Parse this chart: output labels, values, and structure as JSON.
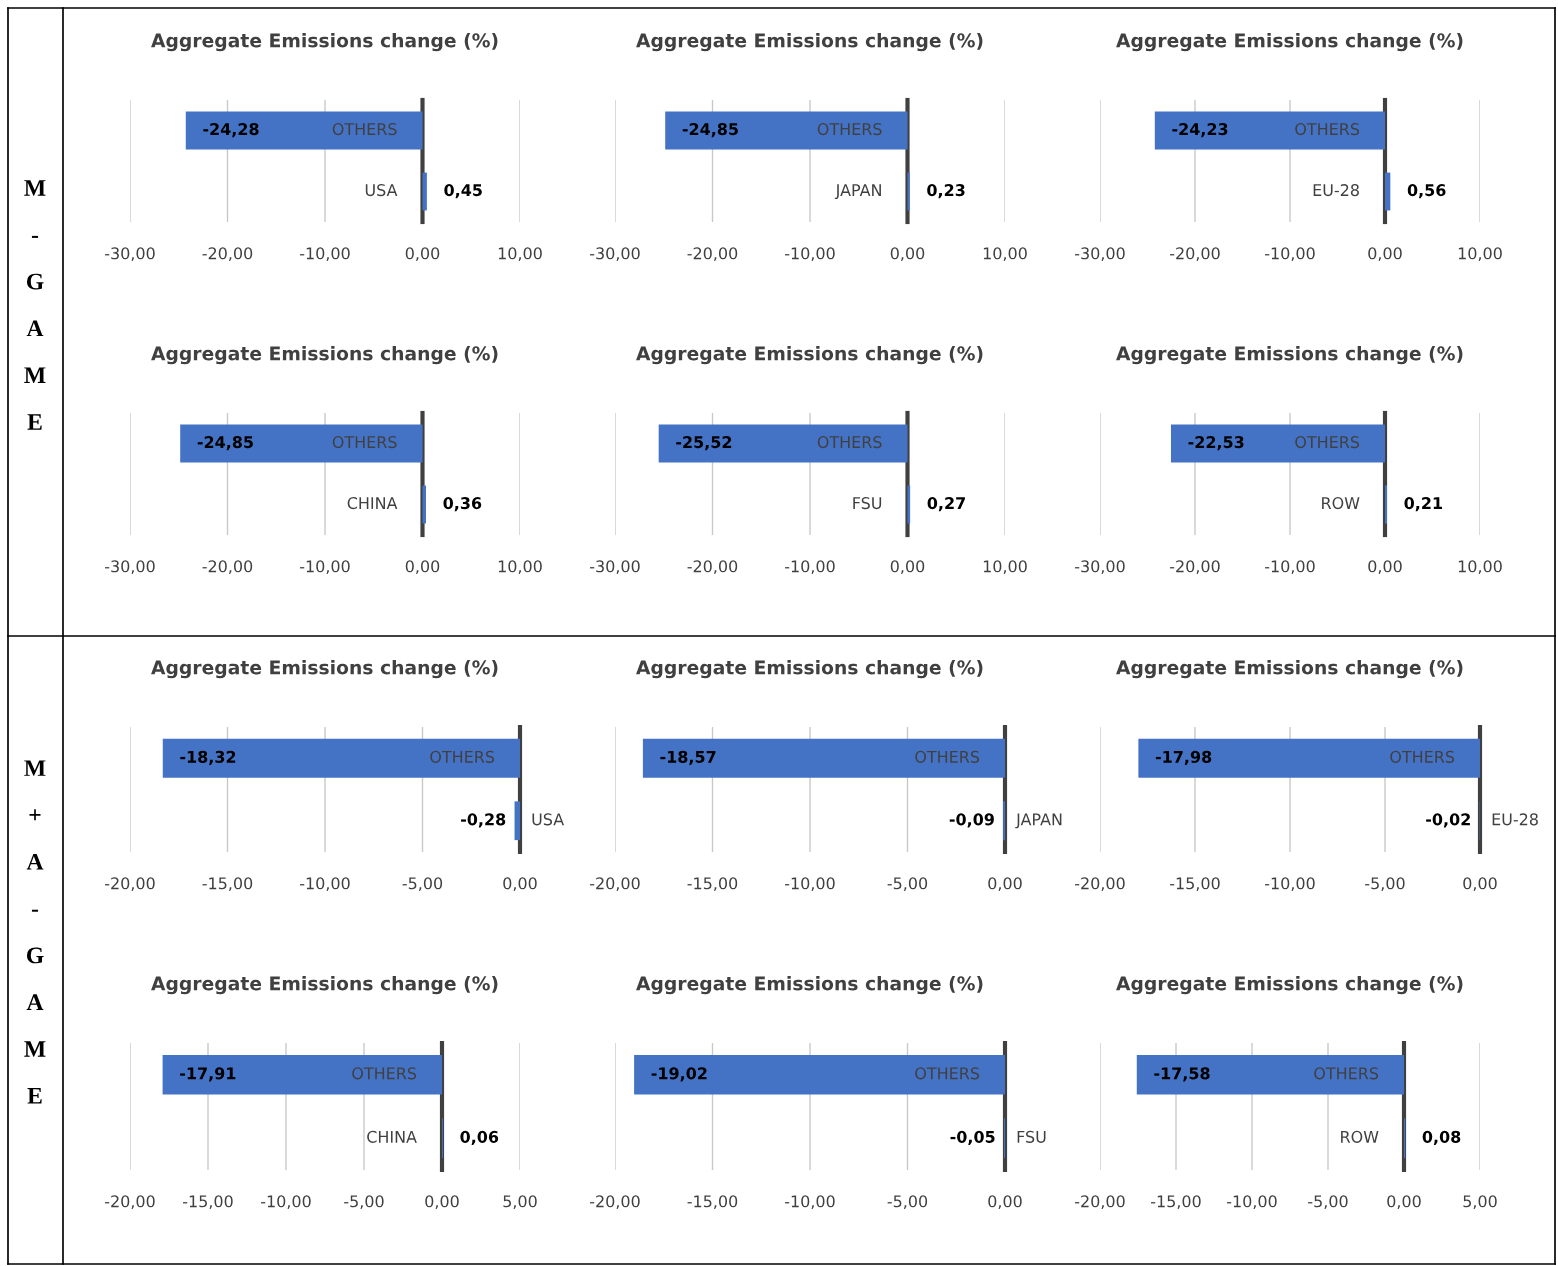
{
  "chart_data": [
    {
      "type": "bar",
      "orientation": "horizontal",
      "title": "Aggregate Emissions change (%)",
      "annotations": [
        "M-GAME"
      ],
      "categories": [
        "OTHERS",
        "USA"
      ],
      "values": [
        -24.28,
        0.45
      ],
      "value_labels": [
        "-24,28",
        "0,45"
      ],
      "color": "#4472c4",
      "xlim": [
        -30,
        10
      ],
      "xticks": [
        {
          "value": -30,
          "label": "-30,00"
        },
        {
          "value": -20,
          "label": "-20,00"
        },
        {
          "value": -10,
          "label": "-10,00"
        },
        {
          "value": 0,
          "label": "0,00"
        },
        {
          "value": 10,
          "label": "10,00"
        }
      ],
      "grid": "x",
      "legend": false
    },
    {
      "type": "bar",
      "orientation": "horizontal",
      "title": "Aggregate Emissions change (%)",
      "categories": [
        "OTHERS",
        "JAPAN"
      ],
      "values": [
        -24.85,
        0.23
      ],
      "value_labels": [
        "-24,85",
        "0,23"
      ],
      "color": "#4472c4",
      "xlim": [
        -30,
        10
      ],
      "xticks": [
        {
          "value": -30,
          "label": "-30,00"
        },
        {
          "value": -20,
          "label": "-20,00"
        },
        {
          "value": -10,
          "label": "-10,00"
        },
        {
          "value": 0,
          "label": "0,00"
        },
        {
          "value": 10,
          "label": "10,00"
        }
      ],
      "grid": "x",
      "legend": false
    },
    {
      "type": "bar",
      "orientation": "horizontal",
      "title": "Aggregate Emissions change (%)",
      "categories": [
        "OTHERS",
        "EU-28"
      ],
      "values": [
        -24.23,
        0.56
      ],
      "value_labels": [
        "-24,23",
        "0,56"
      ],
      "color": "#4472c4",
      "xlim": [
        -30,
        10
      ],
      "xticks": [
        {
          "value": -30,
          "label": "-30,00"
        },
        {
          "value": -20,
          "label": "-20,00"
        },
        {
          "value": -10,
          "label": "-10,00"
        },
        {
          "value": 0,
          "label": "0,00"
        },
        {
          "value": 10,
          "label": "10,00"
        }
      ],
      "grid": "x",
      "legend": false
    },
    {
      "type": "bar",
      "orientation": "horizontal",
      "title": "Aggregate Emissions change (%)",
      "categories": [
        "OTHERS",
        "CHINA"
      ],
      "values": [
        -24.85,
        0.36
      ],
      "value_labels": [
        "-24,85",
        "0,36"
      ],
      "color": "#4472c4",
      "xlim": [
        -30,
        10
      ],
      "xticks": [
        {
          "value": -30,
          "label": "-30,00"
        },
        {
          "value": -20,
          "label": "-20,00"
        },
        {
          "value": -10,
          "label": "-10,00"
        },
        {
          "value": 0,
          "label": "0,00"
        },
        {
          "value": 10,
          "label": "10,00"
        }
      ],
      "grid": "x",
      "legend": false
    },
    {
      "type": "bar",
      "orientation": "horizontal",
      "title": "Aggregate Emissions change (%)",
      "categories": [
        "OTHERS",
        "FSU"
      ],
      "values": [
        -25.52,
        0.27
      ],
      "value_labels": [
        "-25,52",
        "0,27"
      ],
      "color": "#4472c4",
      "xlim": [
        -30,
        10
      ],
      "xticks": [
        {
          "value": -30,
          "label": "-30,00"
        },
        {
          "value": -20,
          "label": "-20,00"
        },
        {
          "value": -10,
          "label": "-10,00"
        },
        {
          "value": 0,
          "label": "0,00"
        },
        {
          "value": 10,
          "label": "10,00"
        }
      ],
      "grid": "x",
      "legend": false
    },
    {
      "type": "bar",
      "orientation": "horizontal",
      "title": "Aggregate Emissions change (%)",
      "categories": [
        "OTHERS",
        "ROW"
      ],
      "values": [
        -22.53,
        0.21
      ],
      "value_labels": [
        "-22,53",
        "0,21"
      ],
      "color": "#4472c4",
      "xlim": [
        -30,
        10
      ],
      "xticks": [
        {
          "value": -30,
          "label": "-30,00"
        },
        {
          "value": -20,
          "label": "-20,00"
        },
        {
          "value": -10,
          "label": "-10,00"
        },
        {
          "value": 0,
          "label": "0,00"
        },
        {
          "value": 10,
          "label": "10,00"
        }
      ],
      "grid": "x",
      "legend": false
    },
    {
      "type": "bar",
      "orientation": "horizontal",
      "title": "Aggregate Emissions change (%)",
      "annotations": [
        "M+A-GAME"
      ],
      "categories": [
        "OTHERS",
        "USA"
      ],
      "values": [
        -18.32,
        -0.28
      ],
      "value_labels": [
        "-18,32",
        "-0,28"
      ],
      "color": "#4472c4",
      "xlim": [
        -20,
        0
      ],
      "xticks": [
        {
          "value": -20,
          "label": "-20,00"
        },
        {
          "value": -15,
          "label": "-15,00"
        },
        {
          "value": -10,
          "label": "-10,00"
        },
        {
          "value": -5,
          "label": "-5,00"
        },
        {
          "value": 0,
          "label": "0,00"
        }
      ],
      "grid": "x",
      "legend": false
    },
    {
      "type": "bar",
      "orientation": "horizontal",
      "title": "Aggregate Emissions change (%)",
      "categories": [
        "OTHERS",
        "JAPAN"
      ],
      "values": [
        -18.57,
        -0.09
      ],
      "value_labels": [
        "-18,57",
        "-0,09"
      ],
      "color": "#4472c4",
      "xlim": [
        -20,
        0
      ],
      "xticks": [
        {
          "value": -20,
          "label": "-20,00"
        },
        {
          "value": -15,
          "label": "-15,00"
        },
        {
          "value": -10,
          "label": "-10,00"
        },
        {
          "value": -5,
          "label": "-5,00"
        },
        {
          "value": 0,
          "label": "0,00"
        }
      ],
      "grid": "x",
      "legend": false
    },
    {
      "type": "bar",
      "orientation": "horizontal",
      "title": "Aggregate Emissions change (%)",
      "categories": [
        "OTHERS",
        "EU-28"
      ],
      "values": [
        -17.98,
        -0.02
      ],
      "value_labels": [
        "-17,98",
        "-0,02"
      ],
      "color": "#4472c4",
      "xlim": [
        -20,
        0
      ],
      "xticks": [
        {
          "value": -20,
          "label": "-20,00"
        },
        {
          "value": -15,
          "label": "-15,00"
        },
        {
          "value": -10,
          "label": "-10,00"
        },
        {
          "value": -5,
          "label": "-5,00"
        },
        {
          "value": 0,
          "label": "0,00"
        }
      ],
      "grid": "x",
      "legend": false
    },
    {
      "type": "bar",
      "orientation": "horizontal",
      "title": "Aggregate Emissions change (%)",
      "categories": [
        "OTHERS",
        "CHINA"
      ],
      "values": [
        -17.91,
        0.06
      ],
      "value_labels": [
        "-17,91",
        "0,06"
      ],
      "color": "#4472c4",
      "xlim": [
        -20,
        5
      ],
      "xticks": [
        {
          "value": -20,
          "label": "-20,00"
        },
        {
          "value": -15,
          "label": "-15,00"
        },
        {
          "value": -10,
          "label": "-10,00"
        },
        {
          "value": -5,
          "label": "-5,00"
        },
        {
          "value": 0,
          "label": "0,00"
        },
        {
          "value": 5,
          "label": "5,00"
        }
      ],
      "grid": "x",
      "legend": false
    },
    {
      "type": "bar",
      "orientation": "horizontal",
      "title": "Aggregate Emissions change (%)",
      "categories": [
        "OTHERS",
        "FSU"
      ],
      "values": [
        -19.02,
        -0.05
      ],
      "value_labels": [
        "-19,02",
        "-0,05"
      ],
      "color": "#4472c4",
      "xlim": [
        -20,
        0
      ],
      "xticks": [
        {
          "value": -20,
          "label": "-20,00"
        },
        {
          "value": -15,
          "label": "-15,00"
        },
        {
          "value": -10,
          "label": "-10,00"
        },
        {
          "value": -5,
          "label": "-5,00"
        },
        {
          "value": 0,
          "label": "0,00"
        }
      ],
      "grid": "x",
      "legend": false
    },
    {
      "type": "bar",
      "orientation": "horizontal",
      "title": "Aggregate Emissions change (%)",
      "categories": [
        "OTHERS",
        "ROW"
      ],
      "values": [
        -17.58,
        0.08
      ],
      "value_labels": [
        "-17,58",
        "0,08"
      ],
      "color": "#4472c4",
      "xlim": [
        -20,
        5
      ],
      "xticks": [
        {
          "value": -20,
          "label": "-20,00"
        },
        {
          "value": -15,
          "label": "-15,00"
        },
        {
          "value": -10,
          "label": "-10,00"
        },
        {
          "value": -5,
          "label": "-5,00"
        },
        {
          "value": 0,
          "label": "0,00"
        },
        {
          "value": 5,
          "label": "5,00"
        }
      ],
      "grid": "x",
      "legend": false
    }
  ]
}
